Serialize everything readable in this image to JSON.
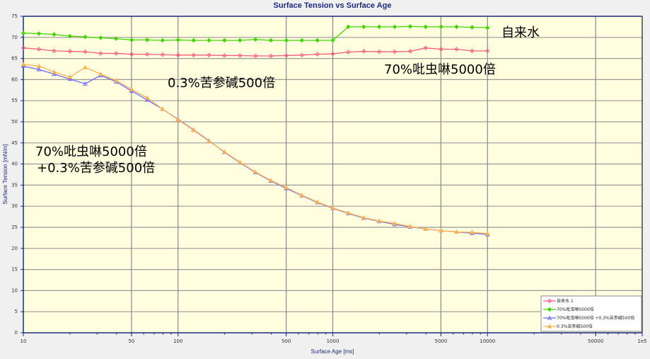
{
  "chart_data": {
    "type": "line",
    "title": "Surface Tension vs Surface Age",
    "xlabel": "Surface Age [ms]",
    "ylabel": "Surface Tension [mN/m]",
    "xscale": "log",
    "xlim": [
      10,
      100000
    ],
    "ylim": [
      0,
      75
    ],
    "x_ticks": [
      10,
      50,
      100,
      500,
      1000,
      5000,
      10000,
      50000,
      100000
    ],
    "x_tick_labels": [
      "10",
      "50",
      "100",
      "500",
      "1000",
      "5000",
      "10000",
      "50000",
      "1e5"
    ],
    "y_ticks": [
      0,
      5,
      10,
      15,
      20,
      25,
      30,
      35,
      40,
      45,
      50,
      55,
      60,
      65,
      70,
      75
    ],
    "grid": true,
    "legend_position": "bottom-right",
    "background": "#ffffe0",
    "x": [
      10,
      12.6,
      15.8,
      20,
      25.1,
      31.6,
      39.8,
      50.1,
      63.1,
      79.4,
      100,
      125.9,
      158.5,
      199.5,
      251.2,
      316.2,
      398.1,
      501.2,
      631,
      794.3,
      1000,
      1258.9,
      1584.9,
      1995.3,
      2511.9,
      3162.3,
      3981.1,
      5011.9,
      6309.6,
      7943.3,
      10000
    ],
    "series": [
      {
        "name": "自来水 1",
        "color": "#ff5a7a",
        "marker": "diamond-open",
        "values": [
          67.5,
          67.2,
          66.8,
          66.7,
          66.6,
          66.2,
          66.2,
          66.0,
          66.0,
          65.9,
          65.8,
          65.8,
          65.8,
          65.7,
          65.7,
          65.6,
          65.6,
          65.7,
          65.8,
          66.0,
          66.1,
          66.5,
          66.7,
          66.6,
          66.6,
          66.7,
          67.5,
          67.2,
          67.2,
          66.8,
          66.8
        ]
      },
      {
        "name": "70%吡虫啉5000倍",
        "color": "#44d400",
        "marker": "diamond",
        "values": [
          71.0,
          70.9,
          70.7,
          70.3,
          70.1,
          69.9,
          69.7,
          69.4,
          69.4,
          69.3,
          69.4,
          69.3,
          69.3,
          69.3,
          69.3,
          69.5,
          69.3,
          69.3,
          69.3,
          69.3,
          69.3,
          72.5,
          72.5,
          72.5,
          72.5,
          72.6,
          72.5,
          72.5,
          72.5,
          72.4,
          72.3
        ]
      },
      {
        "name": "70%吡虫啉5000倍 +0.3%苦参碱500倍",
        "color": "#6a6aff",
        "marker": "triangle-open",
        "values": [
          63.2,
          62.4,
          61.3,
          60.1,
          59.0,
          61.0,
          59.5,
          57.3,
          55.2,
          53.0,
          50.6,
          48.1,
          45.5,
          42.8,
          40.3,
          38.0,
          36.0,
          34.2,
          32.5,
          30.9,
          29.5,
          28.3,
          27.2,
          26.4,
          25.7,
          25.1,
          24.6,
          24.2,
          23.9,
          23.6,
          23.3
        ]
      },
      {
        "name": "0.3%苦参碱500倍",
        "color": "#ffb050",
        "marker": "triangle",
        "values": [
          63.6,
          63.2,
          61.8,
          60.6,
          62.9,
          61.3,
          59.8,
          57.7,
          55.7,
          53.0,
          50.5,
          48.0,
          45.4,
          42.9,
          40.4,
          38.1,
          36.1,
          34.4,
          32.6,
          31.0,
          29.6,
          28.4,
          27.3,
          26.5,
          25.9,
          25.2,
          24.6,
          24.2,
          23.9,
          23.8,
          23.5
        ]
      }
    ],
    "annotations": [
      "自来水",
      "70%吡虫啉5000倍",
      "0.3%苦参碱500倍",
      "70%吡虫啉5000倍",
      "+0.3%苦参碱500倍"
    ]
  }
}
